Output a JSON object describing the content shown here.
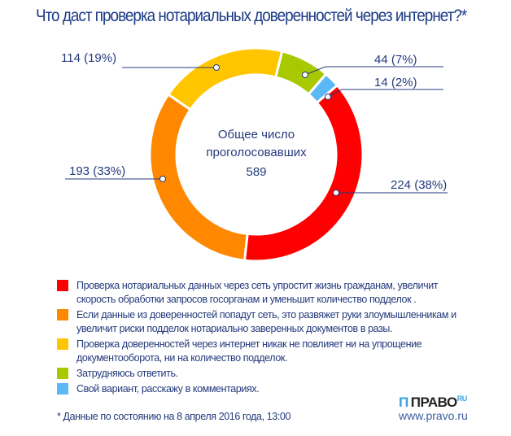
{
  "title": "Что даст проверка нотариальных доверенностей через интернет?*",
  "chart_data": {
    "type": "pie",
    "donut": true,
    "title": "Что даст проверка нотариальных доверенностей через интернет?*",
    "center": {
      "line1": "Общее число",
      "line2": "проголосовавших",
      "total": "589"
    },
    "series": [
      {
        "name": "Проверка нотариальных данных через сеть упростит жизнь гражданам, увеличит скорость обработки запросов госорганам и уменьшит количество подделок .",
        "value": 224,
        "percent": 38,
        "label": "224 (38%)",
        "color": "#ff0000"
      },
      {
        "name": "Если данные из доверенностей попадут сеть, это развяжет руки злоумышленникам и увеличит риски подделок нотариально заверенных документов в разы.",
        "value": 193,
        "percent": 33,
        "label": "193 (33%)",
        "color": "#ff8800"
      },
      {
        "name": "Проверка доверенностей через интернет никак не повлияет ни на упрощение документооборота, ни на количество подделок.",
        "value": 114,
        "percent": 19,
        "label": "114 (19%)",
        "color": "#ffc600"
      },
      {
        "name": "Затрудняюсь ответить.",
        "value": 44,
        "percent": 7,
        "label": "44 (7%)",
        "color": "#a8c800"
      },
      {
        "name": "Свой вариант, расскажу в комментариях.",
        "value": 14,
        "percent": 2,
        "label": "14 (2%)",
        "color": "#5ab8f5"
      }
    ]
  },
  "footnote": "* Данные по состоянию на 8 апреля 2016 года, 13:00",
  "logo": {
    "text": "ПРАВО",
    "sup": "RU",
    "url": "www.pravo.ru"
  }
}
